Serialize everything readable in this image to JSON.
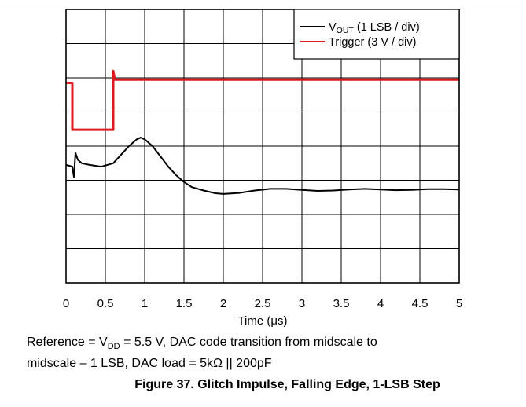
{
  "caption": {
    "part1": "Reference = V",
    "sub1": "DD",
    "part2": " = 5.5 V, DAC code transition from midscale to",
    "line2": "midscale – 1 LSB, DAC load = 5kΩ || 200pF"
  },
  "figure_title": "Figure 37. Glitch Impulse, Falling Edge, 1-LSB Step",
  "chart_data": {
    "type": "line",
    "xlabel_pre": "Time (",
    "xlabel_unit": "μs",
    "xlabel_post": ")",
    "xlim": [
      0,
      5
    ],
    "xticks": [
      "0",
      "0.5",
      "1",
      "1.5",
      "2",
      "2.5",
      "3",
      "3.5",
      "4",
      "4.5",
      "5"
    ],
    "ylim_div": [
      -4,
      4
    ],
    "y_divisions": 8,
    "grid": true,
    "legend_placement": "top-right",
    "legend": [
      {
        "main": "V",
        "sub": "OUT",
        "rest": " (1 LSB / div)",
        "color": "#000000"
      },
      {
        "main": "Trigger (3 V / div)",
        "sub": "",
        "rest": "",
        "color": "#e0191e"
      }
    ],
    "series": [
      {
        "name": "VOUT (1 LSB / div)",
        "color": "#000000",
        "unit": "div",
        "points": [
          [
            0,
            -0.55
          ],
          [
            0.08,
            -0.6
          ],
          [
            0.1,
            -0.9
          ],
          [
            0.12,
            -0.2
          ],
          [
            0.15,
            -0.4
          ],
          [
            0.2,
            -0.5
          ],
          [
            0.3,
            -0.55
          ],
          [
            0.45,
            -0.6
          ],
          [
            0.6,
            -0.5
          ],
          [
            0.7,
            -0.25
          ],
          [
            0.8,
            0.0
          ],
          [
            0.9,
            0.2
          ],
          [
            0.95,
            0.25
          ],
          [
            1.0,
            0.2
          ],
          [
            1.1,
            0.0
          ],
          [
            1.2,
            -0.3
          ],
          [
            1.3,
            -0.6
          ],
          [
            1.4,
            -0.85
          ],
          [
            1.5,
            -1.05
          ],
          [
            1.6,
            -1.2
          ],
          [
            1.75,
            -1.3
          ],
          [
            1.9,
            -1.38
          ],
          [
            2.0,
            -1.4
          ],
          [
            2.2,
            -1.37
          ],
          [
            2.4,
            -1.3
          ],
          [
            2.6,
            -1.25
          ],
          [
            2.8,
            -1.25
          ],
          [
            3.0,
            -1.28
          ],
          [
            3.2,
            -1.31
          ],
          [
            3.4,
            -1.3
          ],
          [
            3.6,
            -1.27
          ],
          [
            3.8,
            -1.25
          ],
          [
            4.0,
            -1.27
          ],
          [
            4.2,
            -1.29
          ],
          [
            4.4,
            -1.28
          ],
          [
            4.6,
            -1.26
          ],
          [
            4.8,
            -1.26
          ],
          [
            5.0,
            -1.27
          ]
        ]
      },
      {
        "name": "Trigger (3 V / div)",
        "color": "#e0191e",
        "unit": "div",
        "points": [
          [
            0,
            1.85
          ],
          [
            0.08,
            1.85
          ],
          [
            0.08,
            0.48
          ],
          [
            0.6,
            0.48
          ],
          [
            0.6,
            2.2
          ],
          [
            0.62,
            1.95
          ],
          [
            5.0,
            1.95
          ]
        ]
      }
    ]
  }
}
